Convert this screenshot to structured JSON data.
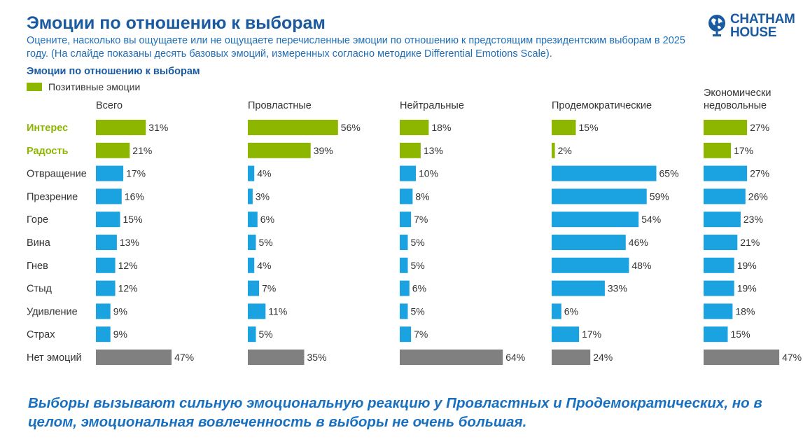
{
  "title": "Эмоции по отношению к выборам",
  "subtitle": "Оцените, насколько вы ощущаете или не ощущаете перечисленные эмоции по отношению к предстоящим президентским выборам в 2025 году. (На слайде показаны десять базовых эмоций, измеренных согласно методике Differential Emotions Scale).",
  "logo": {
    "line1": "CHATHAM",
    "line2": "HOUSE",
    "icon": "globe-icon"
  },
  "chart_title": "Эмоции по отношению к выборам",
  "legend": {
    "label": "Позитивные эмоции",
    "color": "#8db600"
  },
  "colors": {
    "positive": "#8db600",
    "negative": "#1aa3e0",
    "none": "#808080"
  },
  "chart_data": {
    "type": "bar",
    "orientation": "horizontal",
    "categories": [
      "Интерес",
      "Радость",
      "Отвращение",
      "Презрение",
      "Горе",
      "Вина",
      "Гнев",
      "Стыд",
      "Удивление",
      "Страх",
      "Нет эмоций"
    ],
    "category_groups": [
      "positive",
      "positive",
      "negative",
      "negative",
      "negative",
      "negative",
      "negative",
      "negative",
      "negative",
      "negative",
      "none"
    ],
    "value_suffix": "%",
    "xlim": [
      0,
      100
    ],
    "legend_placement": "top-left",
    "series": [
      {
        "name": "Всего",
        "values": [
          31,
          21,
          17,
          16,
          15,
          13,
          12,
          12,
          9,
          9,
          47
        ]
      },
      {
        "name": "Провластные",
        "values": [
          56,
          39,
          4,
          3,
          6,
          5,
          4,
          7,
          11,
          5,
          35
        ]
      },
      {
        "name": "Нейтральные",
        "values": [
          18,
          13,
          10,
          8,
          7,
          5,
          5,
          6,
          5,
          7,
          64
        ]
      },
      {
        "name": "Продемократические",
        "values": [
          15,
          2,
          65,
          59,
          54,
          46,
          48,
          33,
          6,
          17,
          24
        ]
      },
      {
        "name": "Экономически недовольные",
        "values": [
          27,
          17,
          27,
          26,
          23,
          21,
          19,
          19,
          18,
          15,
          47
        ]
      }
    ]
  },
  "footer": "Выборы вызывают сильную эмоциональную реакцию у Провластных и Продемократических, но в целом, эмоциональная вовлеченность в выборы не очень большая."
}
